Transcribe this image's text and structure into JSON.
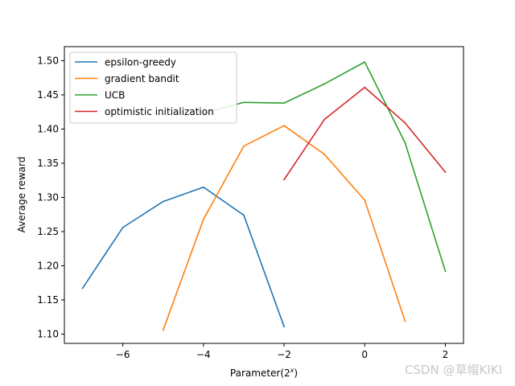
{
  "chart_data": {
    "type": "line",
    "xlabel": "Parameter(2^x)",
    "xlabel_base": "Parameter(2",
    "xlabel_sup": "x",
    "xlabel_end": ")",
    "ylabel": "Average reward",
    "xlim": [
      -7.45,
      2.45
    ],
    "ylim": [
      1.0865,
      1.5205
    ],
    "xticks": [
      -6,
      -4,
      -2,
      0,
      2
    ],
    "xtick_labels": [
      "−6",
      "−4",
      "−2",
      "0",
      "2"
    ],
    "yticks": [
      1.1,
      1.15,
      1.2,
      1.25,
      1.3,
      1.35,
      1.4,
      1.45,
      1.5
    ],
    "ytick_labels": [
      "1.10",
      "1.15",
      "1.20",
      "1.25",
      "1.30",
      "1.35",
      "1.40",
      "1.45",
      "1.50"
    ],
    "grid": false,
    "legend_position": "top-left",
    "series": [
      {
        "name": "epsilon-greedy",
        "color": "#1f77b4",
        "x": [
          -7,
          -6,
          -5,
          -4,
          -3,
          -2
        ],
        "y": [
          1.167,
          1.256,
          1.294,
          1.315,
          1.274,
          1.111
        ]
      },
      {
        "name": "gradient bandit",
        "color": "#ff7f0e",
        "x": [
          -5,
          -4,
          -3,
          -2,
          -1,
          0,
          1
        ],
        "y": [
          1.106,
          1.268,
          1.375,
          1.405,
          1.363,
          1.296,
          1.119
        ]
      },
      {
        "name": "UCB",
        "color": "#2ca02c",
        "x": [
          -4,
          -3,
          -2,
          -1,
          0,
          1,
          2
        ],
        "y": [
          1.423,
          1.439,
          1.438,
          1.466,
          1.498,
          1.38,
          1.192
        ]
      },
      {
        "name": "optimistic initialization",
        "color": "#d62728",
        "x": [
          -2,
          -1,
          0,
          1,
          2
        ],
        "y": [
          1.326,
          1.414,
          1.461,
          1.409,
          1.337
        ]
      }
    ]
  },
  "watermark": "CSDN @草帽KIKI"
}
